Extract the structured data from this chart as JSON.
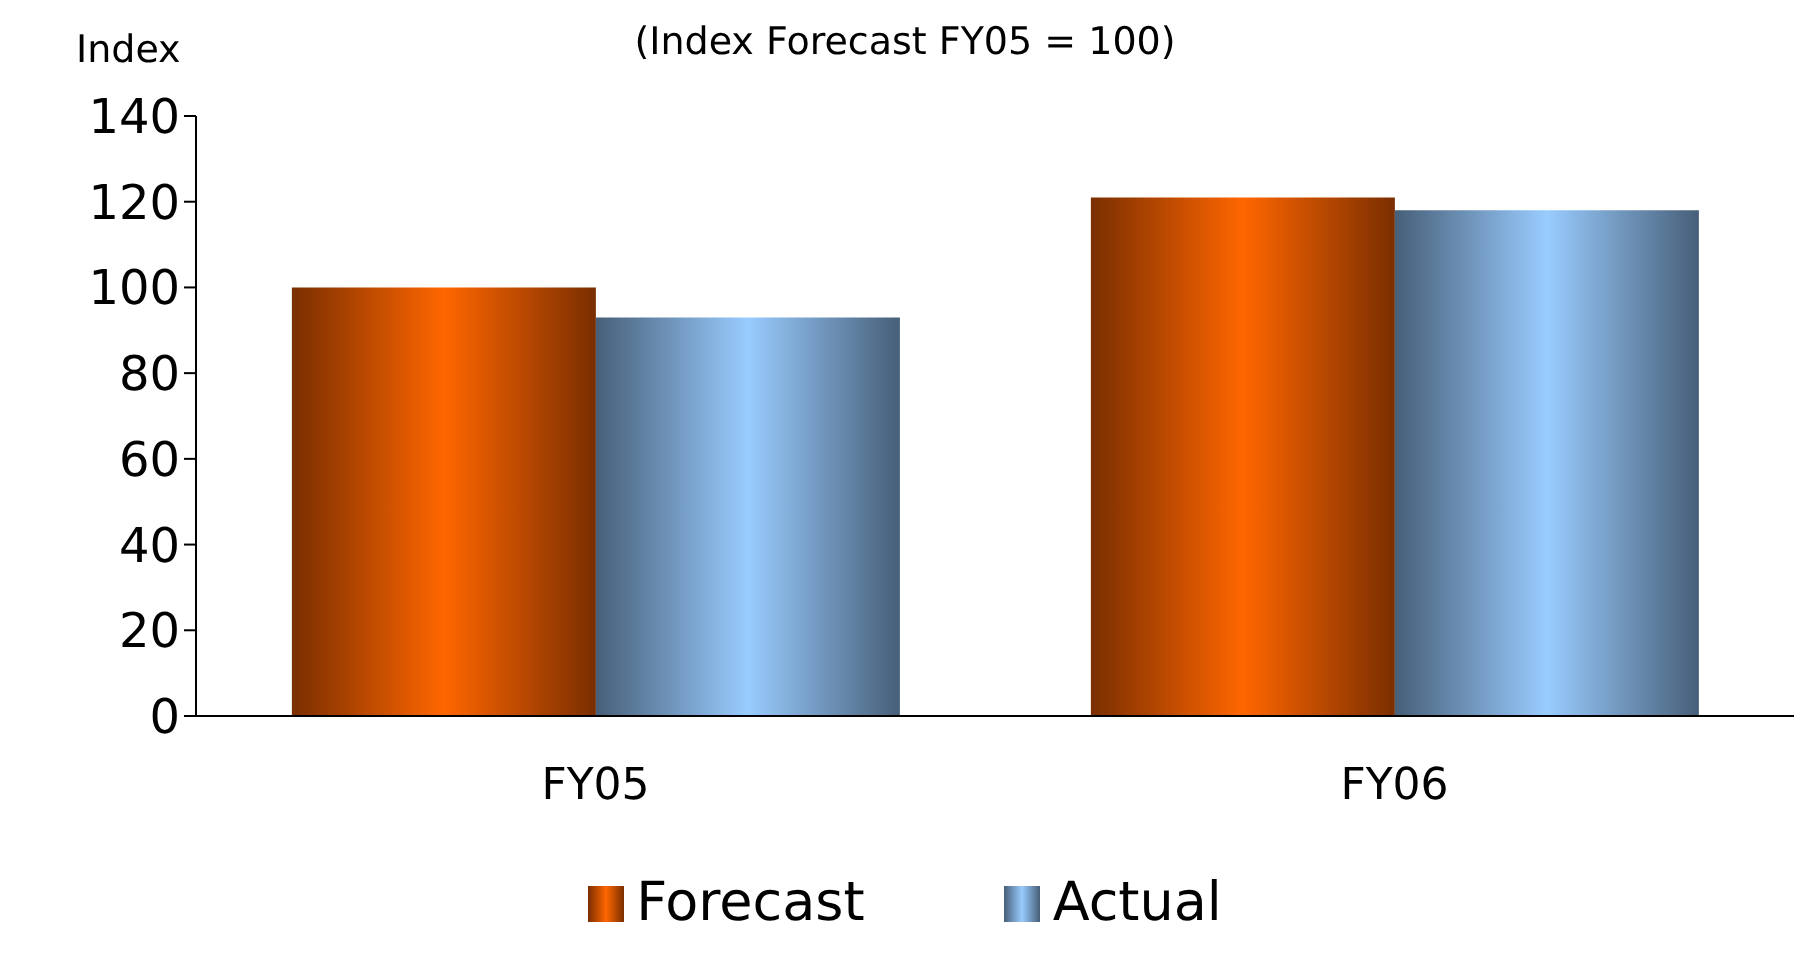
{
  "chart_data": {
    "type": "bar",
    "title": "(Index Forecast FY05 = 100)",
    "ylabel": "Index",
    "categories": [
      "FY05",
      "FY06"
    ],
    "series": [
      {
        "name": "Forecast",
        "color": "#ff6600",
        "values": [
          100,
          121
        ]
      },
      {
        "name": "Actual",
        "color": "#99ccff",
        "values": [
          93,
          118
        ]
      }
    ],
    "ylim": [
      0,
      140
    ],
    "yticks": [
      0,
      20,
      40,
      60,
      80,
      100,
      120,
      140
    ],
    "grid": false,
    "legend": "bottom"
  }
}
